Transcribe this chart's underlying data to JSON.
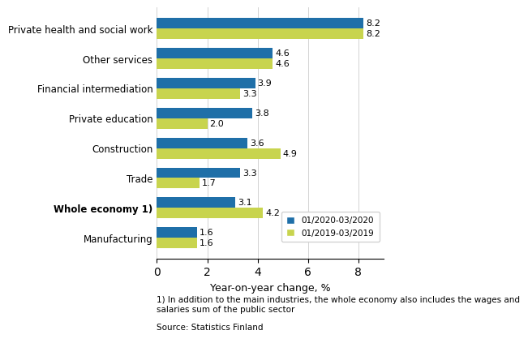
{
  "categories": [
    "Private health and social work",
    "Other services",
    "Financial intermediation",
    "Private education",
    "Construction",
    "Trade",
    "Whole economy 1)",
    "Manufacturing"
  ],
  "series_2020": [
    8.2,
    4.6,
    3.9,
    3.8,
    3.6,
    3.3,
    3.1,
    1.6
  ],
  "series_2019": [
    8.2,
    4.6,
    3.3,
    2.0,
    4.9,
    1.7,
    4.2,
    1.6
  ],
  "color_2020": "#1F6FA8",
  "color_2019": "#C8D44E",
  "legend_2020": "01/2020-03/2020",
  "legend_2019": "01/2019-03/2019",
  "xlabel": "Year-on-year change, %",
  "xlim": [
    0,
    9.0
  ],
  "xticks": [
    0,
    2,
    4,
    6,
    8
  ],
  "footnote": "1) In addition to the main industries, the whole economy also includes the wages and\nsalaries sum of the public sector",
  "source": "Source: Statistics Finland",
  "bold_categories": [
    "Whole economy 1)"
  ],
  "bar_height": 0.35,
  "annotation_fontsize": 8
}
